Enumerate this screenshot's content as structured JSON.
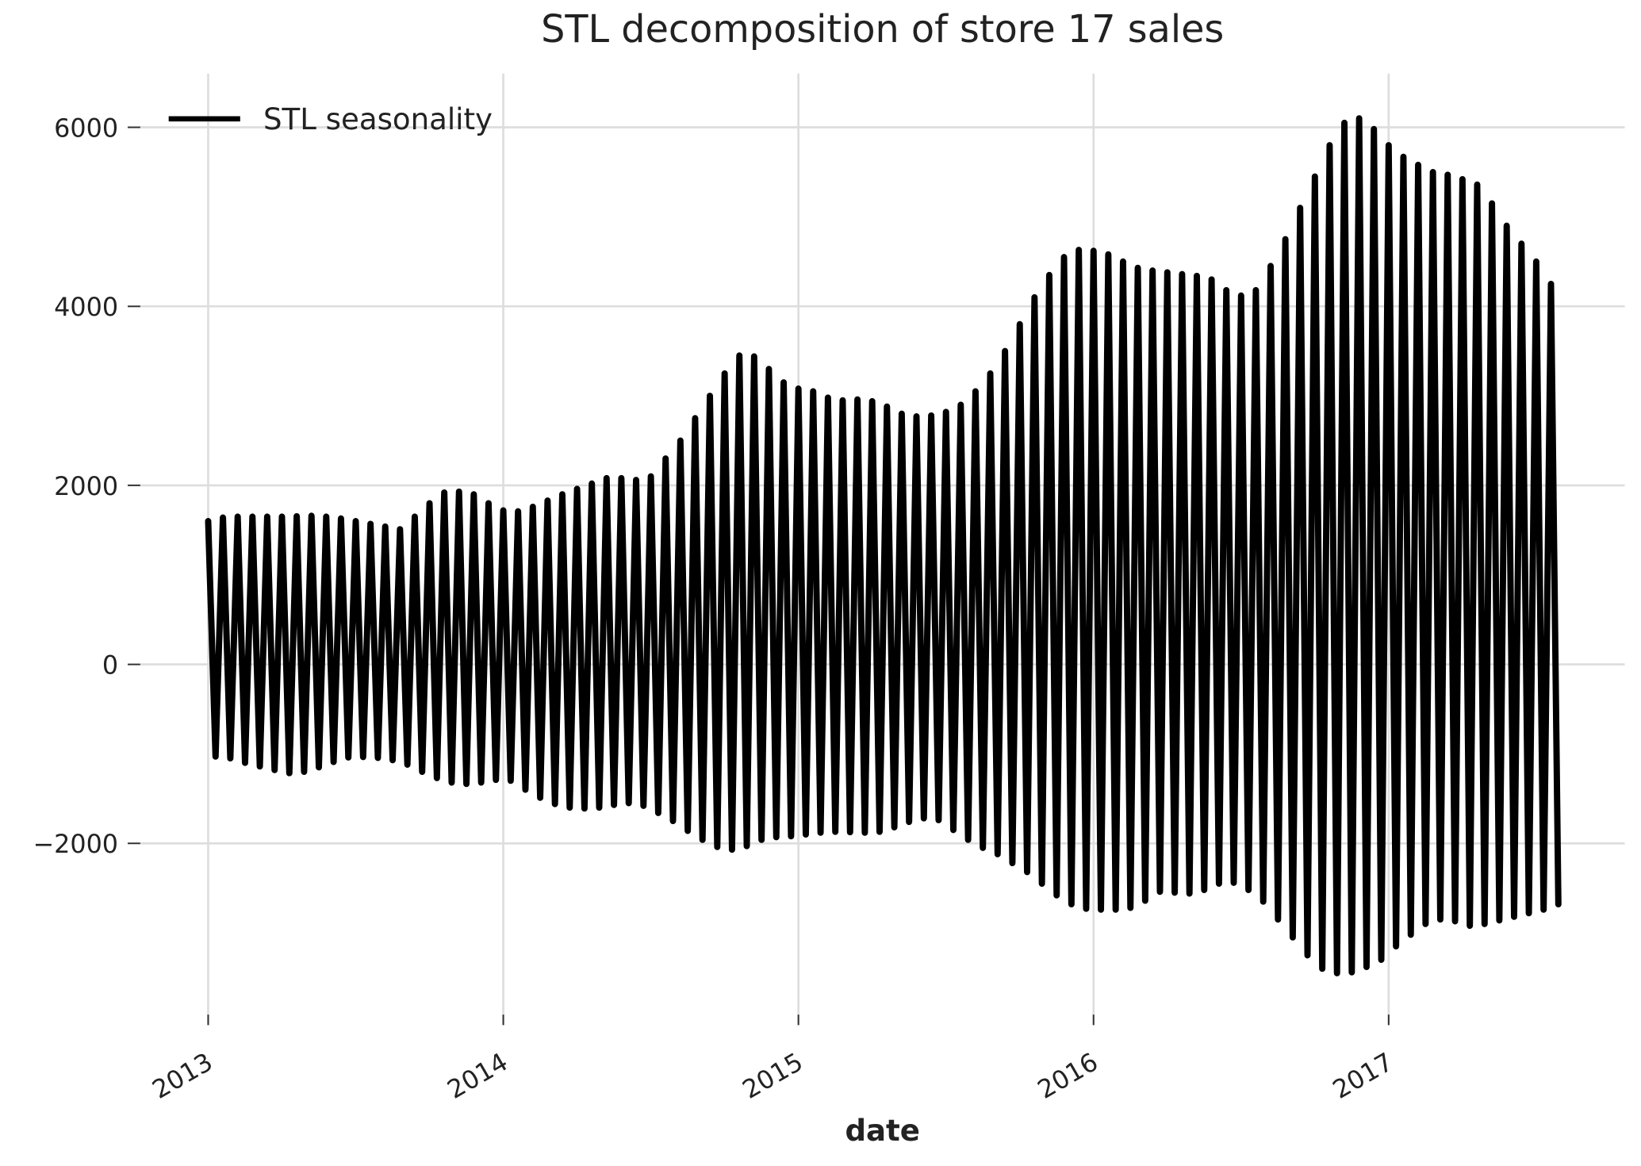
{
  "chart_data": {
    "type": "line",
    "title": "STL decomposition of store 17 sales",
    "x_label": "date",
    "legend": "upper left",
    "grid": true,
    "xlim": [
      2012.77,
      2017.8
    ],
    "xticks": [
      2013,
      2014,
      2015,
      2016,
      2017
    ],
    "ylim": [
      -4030,
      6600
    ],
    "yticks": [
      {
        "value": -2000,
        "label": "−2000"
      },
      0,
      2000,
      4000,
      6000
    ],
    "x": [
      2013.0,
      2013.025,
      2013.05,
      2013.075,
      2013.1,
      2013.125,
      2013.15,
      2013.175,
      2013.2,
      2013.225,
      2013.25,
      2013.275,
      2013.3,
      2013.325,
      2013.35,
      2013.375,
      2013.4,
      2013.425,
      2013.45,
      2013.475,
      2013.5,
      2013.525,
      2013.55,
      2013.575,
      2013.6,
      2013.625,
      2013.65,
      2013.675,
      2013.7,
      2013.725,
      2013.75,
      2013.775,
      2013.8,
      2013.825,
      2013.85,
      2013.875,
      2013.9,
      2013.925,
      2013.95,
      2013.975,
      2014.0,
      2014.025,
      2014.05,
      2014.075,
      2014.1,
      2014.125,
      2014.15,
      2014.175,
      2014.2,
      2014.225,
      2014.25,
      2014.275,
      2014.3,
      2014.325,
      2014.35,
      2014.375,
      2014.4,
      2014.425,
      2014.45,
      2014.475,
      2014.5,
      2014.525,
      2014.55,
      2014.575,
      2014.6,
      2014.625,
      2014.65,
      2014.675,
      2014.7,
      2014.725,
      2014.75,
      2014.775,
      2014.8,
      2014.825,
      2014.85,
      2014.875,
      2014.9,
      2014.925,
      2014.95,
      2014.975,
      2015.0,
      2015.025,
      2015.05,
      2015.075,
      2015.1,
      2015.125,
      2015.15,
      2015.175,
      2015.2,
      2015.225,
      2015.25,
      2015.275,
      2015.3,
      2015.325,
      2015.35,
      2015.375,
      2015.4,
      2015.425,
      2015.45,
      2015.475,
      2015.5,
      2015.525,
      2015.55,
      2015.575,
      2015.6,
      2015.625,
      2015.65,
      2015.675,
      2015.7,
      2015.725,
      2015.75,
      2015.775,
      2015.8,
      2015.825,
      2015.85,
      2015.875,
      2015.9,
      2015.925,
      2015.95,
      2015.975,
      2016.0,
      2016.025,
      2016.05,
      2016.075,
      2016.1,
      2016.125,
      2016.15,
      2016.175,
      2016.2,
      2016.225,
      2016.25,
      2016.275,
      2016.3,
      2016.325,
      2016.35,
      2016.375,
      2016.4,
      2016.425,
      2016.45,
      2016.475,
      2016.5,
      2016.525,
      2016.55,
      2016.575,
      2016.6,
      2016.625,
      2016.65,
      2016.675,
      2016.7,
      2016.725,
      2016.75,
      2016.775,
      2016.8,
      2016.825,
      2016.85,
      2016.875,
      2016.9,
      2016.925,
      2016.95,
      2016.975,
      2017.0,
      2017.025,
      2017.05,
      2017.075,
      2017.1,
      2017.125,
      2017.15,
      2017.175,
      2017.2,
      2017.225,
      2017.25,
      2017.275,
      2017.3,
      2017.325,
      2017.35,
      2017.375,
      2017.4,
      2017.425,
      2017.45,
      2017.475,
      2017.5,
      2017.525,
      2017.55,
      2017.575
    ],
    "series": [
      {
        "name": "STL seasonality",
        "color": "#000000",
        "values": [
          1600,
          -1030,
          1640,
          -1050,
          1650,
          -1100,
          1650,
          -1140,
          1650,
          -1180,
          1650,
          -1215,
          1655,
          -1200,
          1660,
          -1150,
          1650,
          -1090,
          1630,
          -1040,
          1600,
          -1035,
          1570,
          -1045,
          1540,
          -1070,
          1510,
          -1120,
          1650,
          -1200,
          1800,
          -1270,
          1920,
          -1320,
          1930,
          -1335,
          1900,
          -1320,
          1800,
          -1290,
          1720,
          -1300,
          1710,
          -1400,
          1760,
          -1490,
          1830,
          -1560,
          1900,
          -1600,
          1960,
          -1610,
          2020,
          -1600,
          2080,
          -1570,
          2080,
          -1550,
          2060,
          -1580,
          2100,
          -1660,
          2300,
          -1750,
          2500,
          -1860,
          2750,
          -1960,
          3000,
          -2040,
          3250,
          -2070,
          3450,
          -2030,
          3440,
          -1960,
          3300,
          -1930,
          3150,
          -1920,
          3080,
          -1900,
          3050,
          -1880,
          2980,
          -1870,
          2950,
          -1875,
          2960,
          -1880,
          2940,
          -1870,
          2880,
          -1820,
          2800,
          -1760,
          2770,
          -1720,
          2780,
          -1740,
          2820,
          -1850,
          2900,
          -1960,
          3050,
          -2050,
          3250,
          -2120,
          3500,
          -2220,
          3800,
          -2320,
          4100,
          -2450,
          4350,
          -2580,
          4550,
          -2680,
          4630,
          -2730,
          4620,
          -2740,
          4580,
          -2740,
          4500,
          -2720,
          4430,
          -2640,
          4400,
          -2540,
          4380,
          -2550,
          4360,
          -2560,
          4340,
          -2520,
          4300,
          -2450,
          4180,
          -2440,
          4120,
          -2520,
          4180,
          -2650,
          4450,
          -2850,
          4750,
          -3050,
          5100,
          -3250,
          5450,
          -3400,
          5800,
          -3450,
          6050,
          -3440,
          6100,
          -3380,
          5980,
          -3300,
          5800,
          -3150,
          5670,
          -3020,
          5580,
          -2900,
          5500,
          -2850,
          5470,
          -2870,
          5420,
          -2920,
          5360,
          -2900,
          5150,
          -2860,
          4900,
          -2820,
          4700,
          -2780,
          4500,
          -2740,
          4250,
          -2680
        ]
      }
    ]
  }
}
